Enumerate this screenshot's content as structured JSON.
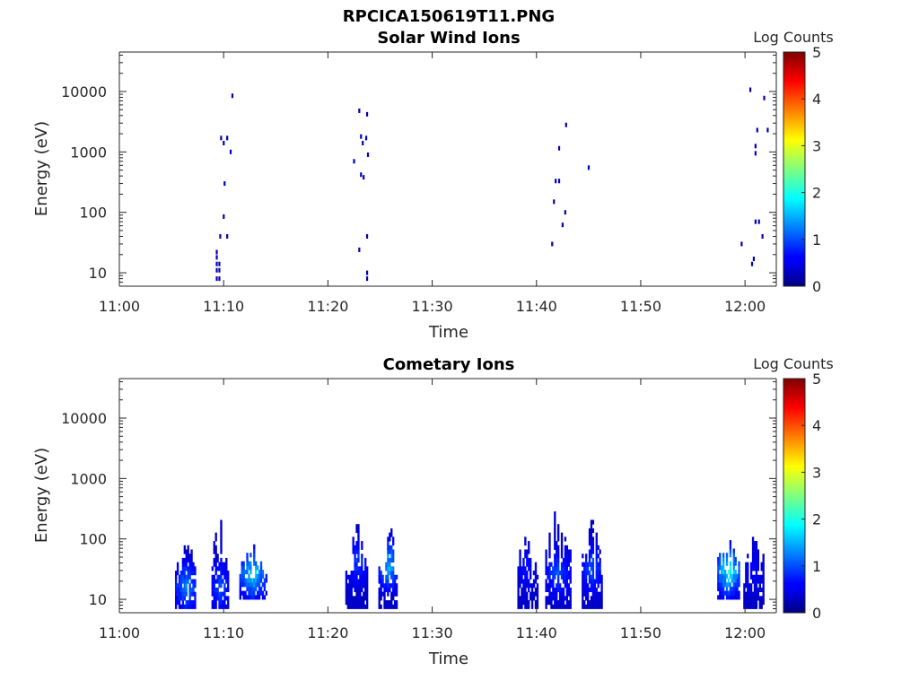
{
  "figure": {
    "title": "RPCICA150619T11.PNG"
  },
  "colors": {
    "axis": "#262626",
    "colormap": "jet"
  },
  "chart_data": [
    {
      "type": "heatmap",
      "title": "Solar Wind Ions",
      "xlabel": "Time",
      "ylabel": "Energy (eV)",
      "x_range": [
        "11:00",
        "12:03"
      ],
      "x_ticks": [
        "11:00",
        "11:10",
        "11:20",
        "11:30",
        "11:40",
        "11:50",
        "12:00"
      ],
      "y_scale": "log",
      "y_range": [
        6,
        45000
      ],
      "y_ticks": [
        "10",
        "100",
        "1000",
        "10000"
      ],
      "colorbar": {
        "label": "Log Counts",
        "range": [
          0,
          5
        ],
        "ticks": [
          "0",
          "1",
          "2",
          "3",
          "4",
          "5"
        ]
      },
      "points": [
        [
          "11:09:20",
          8,
          0.3
        ],
        [
          "11:09:20",
          11,
          0.3
        ],
        [
          "11:09:20",
          14,
          0.3
        ],
        [
          "11:09:20",
          18,
          0.3
        ],
        [
          "11:09:20",
          22,
          0.3
        ],
        [
          "11:09:35",
          8,
          0.3
        ],
        [
          "11:09:35",
          11,
          0.3
        ],
        [
          "11:09:35",
          14,
          0.3
        ],
        [
          "11:09:40",
          40,
          0.3
        ],
        [
          "11:10:00",
          85,
          0.3
        ],
        [
          "11:10:20",
          40,
          0.3
        ],
        [
          "11:09:45",
          1700,
          0.3
        ],
        [
          "11:10:00",
          1400,
          0.3
        ],
        [
          "11:10:20",
          1700,
          0.3
        ],
        [
          "11:10:40",
          1000,
          0.3
        ],
        [
          "11:10:05",
          300,
          0.3
        ],
        [
          "11:10:50",
          8500,
          0.3
        ],
        [
          "11:22:30",
          700,
          0.3
        ],
        [
          "11:23:00",
          4800,
          0.3
        ],
        [
          "11:23:10",
          1800,
          0.3
        ],
        [
          "11:23:20",
          1400,
          0.3
        ],
        [
          "11:23:40",
          1700,
          0.3
        ],
        [
          "11:23:45",
          4200,
          0.3
        ],
        [
          "11:23:50",
          900,
          0.3
        ],
        [
          "11:23:10",
          420,
          0.3
        ],
        [
          "11:23:25",
          380,
          0.3
        ],
        [
          "11:23:45",
          40,
          0.3
        ],
        [
          "11:23:00",
          24,
          0.3
        ],
        [
          "11:23:45",
          8,
          0.3
        ],
        [
          "11:23:45",
          10,
          0.3
        ],
        [
          "11:41:30",
          30,
          0.3
        ],
        [
          "11:41:40",
          150,
          0.3
        ],
        [
          "11:41:50",
          330,
          0.3
        ],
        [
          "11:42:10",
          330,
          0.3
        ],
        [
          "11:42:10",
          1150,
          0.3
        ],
        [
          "11:42:30",
          62,
          0.3
        ],
        [
          "11:42:45",
          100,
          0.3
        ],
        [
          "11:42:50",
          2800,
          0.3
        ],
        [
          "11:45:00",
          550,
          0.3
        ],
        [
          "11:59:40",
          30,
          0.3
        ],
        [
          "12:00:30",
          10700,
          0.3
        ],
        [
          "12:00:40",
          14,
          0.3
        ],
        [
          "12:00:50",
          17,
          0.3
        ],
        [
          "12:01:00",
          70,
          0.3
        ],
        [
          "12:01:00",
          950,
          0.3
        ],
        [
          "12:01:00",
          1250,
          0.3
        ],
        [
          "12:01:10",
          2300,
          0.3
        ],
        [
          "12:01:20",
          70,
          0.3
        ],
        [
          "12:01:40",
          40,
          0.3
        ],
        [
          "12:01:50",
          7800,
          0.3
        ],
        [
          "12:02:10",
          2300,
          0.3
        ]
      ]
    },
    {
      "type": "heatmap",
      "title": "Cometary Ions",
      "xlabel": "Time",
      "ylabel": "Energy (eV)",
      "x_range": [
        "11:00",
        "12:03"
      ],
      "x_ticks": [
        "11:00",
        "11:10",
        "11:20",
        "11:30",
        "11:40",
        "11:50",
        "12:00"
      ],
      "y_scale": "log",
      "y_range": [
        6,
        45000
      ],
      "y_ticks": [
        "10",
        "100",
        "1000",
        "10000"
      ],
      "colorbar": {
        "label": "Log Counts",
        "range": [
          0,
          5
        ],
        "ticks": [
          "0",
          "1",
          "2",
          "3",
          "4",
          "5"
        ]
      },
      "bursts": [
        {
          "start": "11:05:20",
          "end": "11:07:20",
          "emin": 7,
          "emax": 100,
          "peak": 1.6,
          "peak_e": 15
        },
        {
          "start": "11:08:50",
          "end": "11:10:20",
          "emin": 7,
          "emax": 300,
          "peak": 1.3,
          "peak_e": 15
        },
        {
          "start": "11:11:30",
          "end": "11:14:00",
          "emin": 10,
          "emax": 80,
          "peak": 2.1,
          "peak_e": 25
        },
        {
          "start": "11:21:40",
          "end": "11:23:50",
          "emin": 7,
          "emax": 450,
          "peak": 1.1,
          "peak_e": 40
        },
        {
          "start": "11:24:50",
          "end": "11:26:40",
          "emin": 7,
          "emax": 200,
          "peak": 1.9,
          "peak_e": 35
        },
        {
          "start": "11:38:10",
          "end": "11:40:00",
          "emin": 7,
          "emax": 200,
          "peak": 0.8,
          "peak_e": 30
        },
        {
          "start": "11:40:50",
          "end": "11:43:10",
          "emin": 7,
          "emax": 450,
          "peak": 1.2,
          "peak_e": 25
        },
        {
          "start": "11:44:20",
          "end": "11:46:10",
          "emin": 7,
          "emax": 220,
          "peak": 1.3,
          "peak_e": 30
        },
        {
          "start": "11:57:20",
          "end": "11:59:20",
          "emin": 10,
          "emax": 110,
          "peak": 2.5,
          "peak_e": 28
        },
        {
          "start": "11:59:50",
          "end": "12:01:40",
          "emin": 7,
          "emax": 200,
          "peak": 0.7,
          "peak_e": 30
        }
      ]
    }
  ]
}
